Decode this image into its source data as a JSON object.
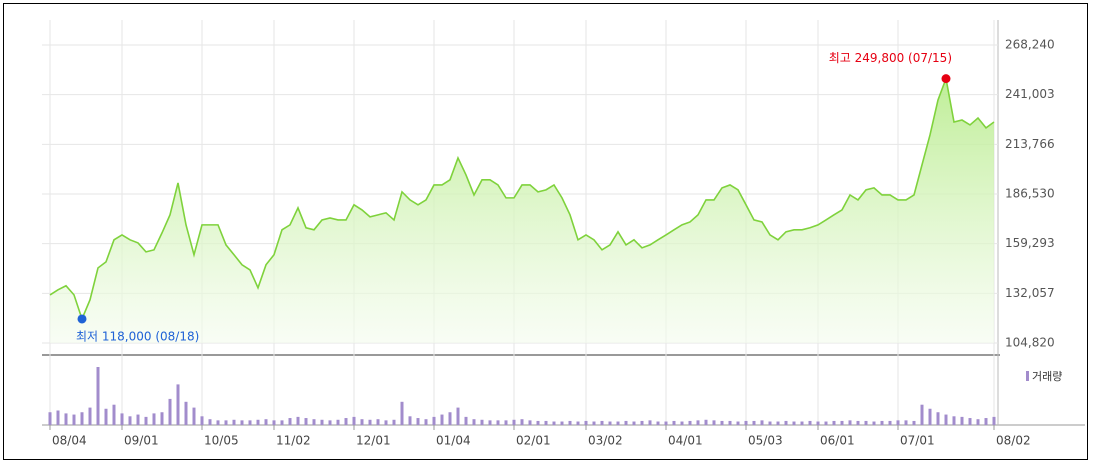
{
  "chart_data": {
    "type": "line",
    "categories": [
      "08/04",
      null,
      null,
      null,
      null,
      null,
      null,
      null,
      null,
      "09/01",
      null,
      null,
      null,
      null,
      null,
      null,
      null,
      null,
      null,
      "10/05",
      null,
      null,
      null,
      null,
      null,
      null,
      null,
      null,
      "11/02",
      null,
      null,
      null,
      null,
      null,
      null,
      null,
      null,
      null,
      "12/01",
      null,
      null,
      null,
      null,
      null,
      null,
      null,
      null,
      null,
      "01/04",
      null,
      null,
      null,
      null,
      null,
      null,
      null,
      null,
      null,
      "02/01",
      null,
      null,
      null,
      null,
      null,
      null,
      null,
      null,
      "03/02",
      null,
      null,
      null,
      null,
      null,
      null,
      null,
      null,
      null,
      "04/01",
      null,
      null,
      null,
      null,
      null,
      null,
      null,
      null,
      null,
      "05/03",
      null,
      null,
      null,
      null,
      null,
      null,
      null,
      null,
      "06/01",
      null,
      null,
      null,
      null,
      null,
      null,
      null,
      null,
      null,
      "07/01",
      null,
      null,
      null,
      null,
      null,
      null,
      null,
      null,
      null,
      null,
      null,
      "08/02"
    ],
    "values": [
      131200,
      134000,
      136200,
      131200,
      118000,
      128500,
      146000,
      149300,
      161400,
      164100,
      161400,
      159700,
      154800,
      155900,
      165200,
      175100,
      192600,
      169600,
      153200,
      169600,
      169600,
      169600,
      158600,
      153200,
      147700,
      144900,
      135100,
      147700,
      153200,
      166900,
      169600,
      178900,
      168000,
      166900,
      172300,
      173400,
      172300,
      172300,
      180600,
      177800,
      174000,
      175100,
      176200,
      172300,
      187700,
      183300,
      180600,
      183300,
      191500,
      191500,
      194300,
      206300,
      197000,
      186000,
      194300,
      194300,
      191500,
      184400,
      184400,
      191500,
      191500,
      187700,
      188800,
      191500,
      184400,
      175100,
      161400,
      164100,
      161400,
      155900,
      158600,
      165800,
      158600,
      161400,
      157000,
      158600,
      161400,
      164100,
      166900,
      169600,
      171200,
      175100,
      183300,
      183300,
      189900,
      191500,
      188800,
      180600,
      172300,
      171200,
      164100,
      161400,
      165800,
      166900,
      166900,
      168000,
      169600,
      172300,
      175100,
      177800,
      186000,
      183300,
      188800,
      189900,
      186000,
      186000,
      183300,
      183300,
      186000,
      202500,
      218900,
      238100,
      249800,
      226000,
      227100,
      224400,
      228200,
      222800,
      226000
    ],
    "color": "#7fd23c",
    "ylim": [
      104820,
      268240
    ],
    "yticks": [
      {
        "value": 104820,
        "label": "104,820"
      },
      {
        "value": 132057,
        "label": "132,057"
      },
      {
        "value": 159293,
        "label": "159,293"
      },
      {
        "value": 186530,
        "label": "186,530"
      },
      {
        "value": 213766,
        "label": "213,766"
      },
      {
        "value": 241003,
        "label": "241,003"
      },
      {
        "value": 268240,
        "label": "268,240"
      }
    ],
    "grid": true,
    "annotations": [
      {
        "label": "최고 249,800 (07/15)",
        "value": 249800,
        "color": "#e60012"
      },
      {
        "label": "최저 118,000 (08/18)",
        "value": 118000,
        "color": "#1f62d6"
      }
    ],
    "volume": {
      "name": "거래량",
      "color": "#a28ccc",
      "ylim": [
        0,
        100
      ],
      "values": [
        22,
        25,
        20,
        18,
        22,
        30,
        100,
        28,
        35,
        20,
        15,
        18,
        14,
        20,
        22,
        45,
        70,
        40,
        30,
        15,
        10,
        8,
        8,
        9,
        8,
        8,
        9,
        10,
        8,
        8,
        12,
        14,
        12,
        10,
        9,
        8,
        9,
        12,
        14,
        10,
        9,
        10,
        8,
        9,
        40,
        15,
        12,
        10,
        14,
        18,
        22,
        30,
        14,
        10,
        9,
        8,
        8,
        8,
        9,
        10,
        8,
        7,
        7,
        6,
        6,
        7,
        6,
        7,
        6,
        7,
        6,
        6,
        7,
        6,
        7,
        8,
        6,
        6,
        7,
        6,
        7,
        8,
        9,
        8,
        7,
        7,
        6,
        7,
        7,
        8,
        6,
        6,
        7,
        6,
        6,
        7,
        6,
        6,
        7,
        7,
        8,
        7,
        7,
        6,
        7,
        7,
        8,
        8,
        7,
        35,
        28,
        22,
        18,
        15,
        14,
        12,
        10,
        12,
        14
      ]
    }
  }
}
